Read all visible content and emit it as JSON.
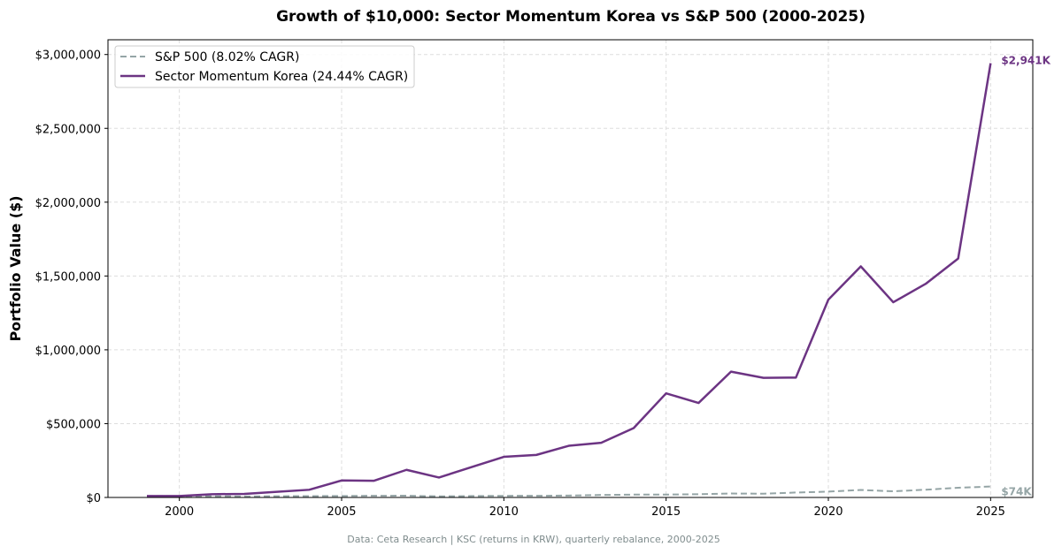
{
  "chart_data": {
    "type": "line",
    "title": "Growth of $10,000: Sector Momentum Korea vs S&P 500 (2000-2025)",
    "xlabel": "",
    "ylabel": "Portfolio Value ($)",
    "footnote": "Data: Ceta Research | KSC (returns in KRW), quarterly rebalance, 2000-2025",
    "xlim": [
      1997.8,
      2026.3
    ],
    "ylim": [
      0,
      3100000
    ],
    "xticks": [
      2000,
      2005,
      2010,
      2015,
      2020,
      2025
    ],
    "xtick_labels": [
      "2000",
      "2005",
      "2010",
      "2015",
      "2020",
      "2025"
    ],
    "yticks": [
      0,
      500000,
      1000000,
      1500000,
      2000000,
      2500000,
      3000000
    ],
    "ytick_labels": [
      "$0",
      "$500,000",
      "$1,000,000",
      "$1,500,000",
      "$2,000,000",
      "$2,500,000",
      "$3,000,000"
    ],
    "grid": true,
    "legend_position": "top-left",
    "x": [
      1999,
      2000,
      2001,
      2002,
      2003,
      2004,
      2005,
      2006,
      2007,
      2008,
      2009,
      2010,
      2011,
      2012,
      2013,
      2014,
      2015,
      2016,
      2017,
      2018,
      2019,
      2020,
      2021,
      2022,
      2023,
      2024,
      2025
    ],
    "series": [
      {
        "name": "S&P 500 (8.02% CAGR)",
        "color": "#95a5a6",
        "style": "dashed",
        "end_label": "$74K",
        "values": [
          10000,
          9000,
          8000,
          6500,
          8300,
          9200,
          9700,
          11200,
          11800,
          7400,
          9400,
          10800,
          11000,
          12800,
          16900,
          19200,
          19500,
          21800,
          26600,
          25400,
          33400,
          39500,
          50800,
          41600,
          52500,
          65600,
          74000
        ]
      },
      {
        "name": "Sector Momentum Korea (24.44% CAGR)",
        "color": "#6c3483",
        "style": "solid",
        "end_label": "$2,941K",
        "values": [
          10000,
          10000,
          22000,
          24000,
          38000,
          52000,
          115000,
          113000,
          187000,
          135000,
          205000,
          275000,
          288000,
          350000,
          370000,
          470000,
          705000,
          640000,
          852000,
          810000,
          812000,
          1340000,
          1565000,
          1322000,
          1447000,
          1618000,
          2941000
        ]
      }
    ]
  }
}
